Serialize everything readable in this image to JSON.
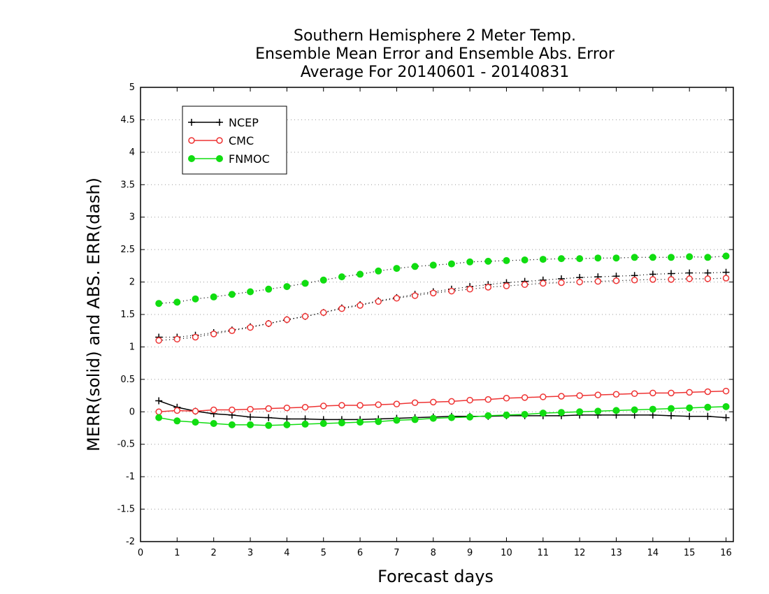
{
  "chart_data": {
    "type": "line",
    "title_lines": [
      "Southern Hemisphere 2 Meter Temp.",
      "Ensemble Mean Error and Ensemble Abs. Error",
      "Average For 20140601 - 20140831"
    ],
    "xlabel": "Forecast days",
    "ylabel": "MERR(solid) and ABS. ERR(dash)",
    "xlim": [
      0,
      16.2
    ],
    "ylim": [
      -2,
      5
    ],
    "x_ticks": [
      0,
      1,
      2,
      3,
      4,
      5,
      6,
      7,
      8,
      9,
      10,
      11,
      12,
      13,
      14,
      15,
      16
    ],
    "y_ticks": [
      -2,
      -1.5,
      -1,
      -0.5,
      0,
      0.5,
      1,
      1.5,
      2,
      2.5,
      3,
      3.5,
      4,
      4.5,
      5
    ],
    "y_tick_labels": [
      "-2",
      "-1.5",
      "-1",
      "-0.5",
      "0",
      "0.5",
      "1",
      "1.5",
      "2",
      "2.5",
      "3",
      "3.5",
      "4",
      "4.5",
      "5"
    ],
    "grid": "horizontal-dotted",
    "legend_position": "top-left",
    "x": [
      0.5,
      1,
      1.5,
      2,
      2.5,
      3,
      3.5,
      4,
      4.5,
      5,
      5.5,
      6,
      6.5,
      7,
      7.5,
      8,
      8.5,
      9,
      9.5,
      10,
      10.5,
      11,
      11.5,
      12,
      12.5,
      13,
      13.5,
      14,
      14.5,
      15,
      15.5,
      16
    ],
    "series": [
      {
        "name": "NCEP",
        "color": "#000000",
        "marker": "plus",
        "merr": [
          0.17,
          0.07,
          0.01,
          -0.03,
          -0.05,
          -0.08,
          -0.09,
          -0.11,
          -0.11,
          -0.12,
          -0.12,
          -0.12,
          -0.11,
          -0.1,
          -0.09,
          -0.08,
          -0.07,
          -0.07,
          -0.07,
          -0.06,
          -0.06,
          -0.06,
          -0.06,
          -0.05,
          -0.05,
          -0.05,
          -0.05,
          -0.05,
          -0.06,
          -0.07,
          -0.07,
          -0.09
        ],
        "abs_err": [
          1.15,
          1.15,
          1.18,
          1.22,
          1.26,
          1.31,
          1.36,
          1.42,
          1.47,
          1.53,
          1.6,
          1.65,
          1.71,
          1.76,
          1.81,
          1.85,
          1.89,
          1.93,
          1.96,
          1.99,
          2.01,
          2.03,
          2.05,
          2.07,
          2.08,
          2.09,
          2.1,
          2.12,
          2.13,
          2.14,
          2.14,
          2.15
        ]
      },
      {
        "name": "CMC",
        "color": "#ee3333",
        "marker": "open-circle",
        "merr": [
          0.0,
          0.02,
          0.01,
          0.03,
          0.03,
          0.04,
          0.05,
          0.06,
          0.07,
          0.09,
          0.1,
          0.1,
          0.11,
          0.12,
          0.14,
          0.15,
          0.16,
          0.18,
          0.19,
          0.21,
          0.22,
          0.23,
          0.24,
          0.25,
          0.26,
          0.27,
          0.28,
          0.29,
          0.29,
          0.3,
          0.31,
          0.32
        ],
        "abs_err": [
          1.1,
          1.12,
          1.15,
          1.2,
          1.25,
          1.3,
          1.36,
          1.42,
          1.47,
          1.53,
          1.59,
          1.64,
          1.7,
          1.75,
          1.79,
          1.83,
          1.86,
          1.89,
          1.92,
          1.94,
          1.96,
          1.98,
          1.99,
          2.0,
          2.01,
          2.02,
          2.03,
          2.04,
          2.04,
          2.05,
          2.05,
          2.06
        ]
      },
      {
        "name": "FNMOC",
        "color": "#11dd11",
        "marker": "filled-circle",
        "merr": [
          -0.09,
          -0.14,
          -0.16,
          -0.18,
          -0.2,
          -0.2,
          -0.21,
          -0.2,
          -0.19,
          -0.18,
          -0.17,
          -0.16,
          -0.15,
          -0.13,
          -0.12,
          -0.1,
          -0.09,
          -0.08,
          -0.06,
          -0.05,
          -0.04,
          -0.02,
          -0.01,
          0.0,
          0.01,
          0.02,
          0.03,
          0.04,
          0.05,
          0.06,
          0.07,
          0.08
        ],
        "abs_err": [
          1.67,
          1.69,
          1.74,
          1.77,
          1.81,
          1.85,
          1.89,
          1.93,
          1.98,
          2.03,
          2.08,
          2.12,
          2.17,
          2.21,
          2.24,
          2.26,
          2.28,
          2.31,
          2.32,
          2.33,
          2.34,
          2.35,
          2.36,
          2.36,
          2.37,
          2.37,
          2.38,
          2.38,
          2.38,
          2.39,
          2.38,
          2.4
        ]
      }
    ]
  }
}
